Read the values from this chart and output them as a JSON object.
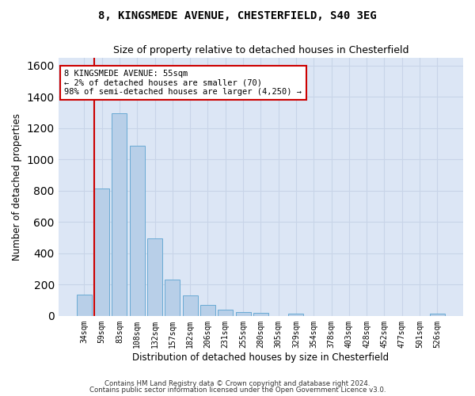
{
  "title1": "8, KINGSMEDE AVENUE, CHESTERFIELD, S40 3EG",
  "title2": "Size of property relative to detached houses in Chesterfield",
  "xlabel": "Distribution of detached houses by size in Chesterfield",
  "ylabel": "Number of detached properties",
  "categories": [
    "34sqm",
    "59sqm",
    "83sqm",
    "108sqm",
    "132sqm",
    "157sqm",
    "182sqm",
    "206sqm",
    "231sqm",
    "255sqm",
    "280sqm",
    "305sqm",
    "329sqm",
    "354sqm",
    "378sqm",
    "403sqm",
    "428sqm",
    "452sqm",
    "477sqm",
    "501sqm",
    "526sqm"
  ],
  "values": [
    135,
    815,
    1295,
    1090,
    495,
    232,
    130,
    68,
    40,
    27,
    20,
    0,
    16,
    0,
    0,
    0,
    0,
    0,
    0,
    0,
    16
  ],
  "bar_color": "#b8cfe8",
  "bar_edge_color": "#6aaad4",
  "marker_color": "#cc0000",
  "annotation_text": "8 KINGSMEDE AVENUE: 55sqm\n← 2% of detached houses are smaller (70)\n98% of semi-detached houses are larger (4,250) →",
  "annotation_box_color": "#ffffff",
  "annotation_border_color": "#cc0000",
  "grid_color": "#c8d4e8",
  "background_color": "#dce6f5",
  "ylim": [
    0,
    1650
  ],
  "yticks": [
    0,
    200,
    400,
    600,
    800,
    1000,
    1200,
    1400,
    1600
  ],
  "footer1": "Contains HM Land Registry data © Crown copyright and database right 2024.",
  "footer2": "Contains public sector information licensed under the Open Government Licence v3.0."
}
